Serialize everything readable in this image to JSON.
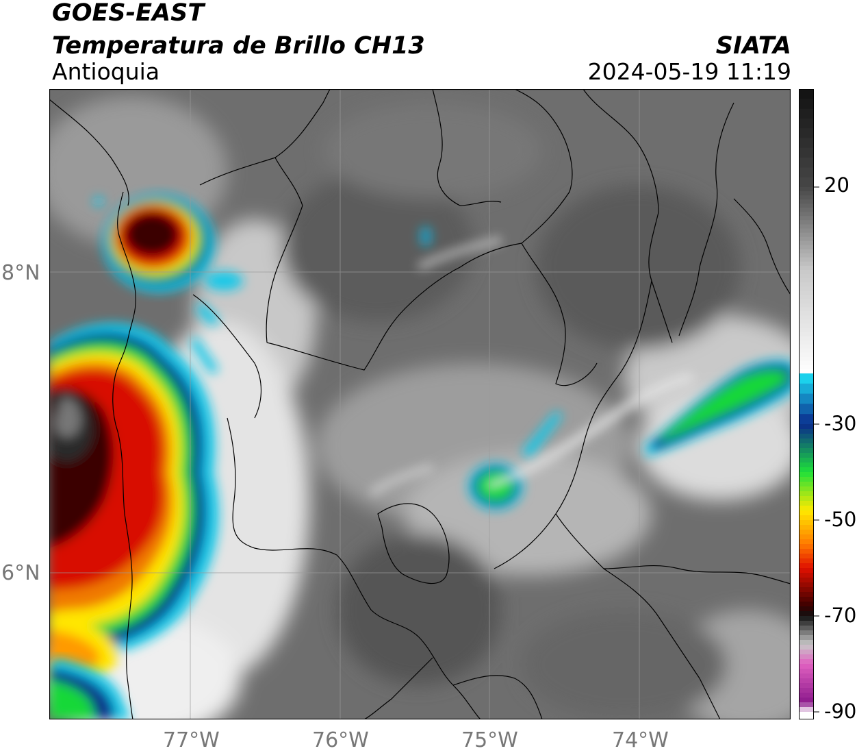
{
  "header": {
    "satellite": "GOES-EAST",
    "product": "Temperatura de Brillo CH13",
    "region": "Antioquia",
    "agency": "SIATA",
    "datetime": "2024-05-19 11:19"
  },
  "axes": {
    "lat_labels": [
      "8°N",
      "6°N"
    ],
    "lon_labels": [
      "77°W",
      "76°W",
      "75°W",
      "74°W"
    ]
  },
  "colorbar": {
    "labels": [
      "20",
      "-30",
      "-50",
      "-70",
      "-90"
    ],
    "stops": [
      {
        "value": 30,
        "color": "#111111"
      },
      {
        "value": 20,
        "color": "#474747"
      },
      {
        "value": 0,
        "color": "#c9c9c9"
      },
      {
        "value": -25,
        "color": "#ffffff"
      },
      {
        "value": -25.1,
        "color": "#1ee0f5"
      },
      {
        "value": -30,
        "color": "#0a2a8c"
      },
      {
        "value": -40,
        "color": "#1ee03a"
      },
      {
        "value": -48,
        "color": "#ffea00"
      },
      {
        "value": -55,
        "color": "#ff7a00"
      },
      {
        "value": -60,
        "color": "#e01000"
      },
      {
        "value": -68,
        "color": "#3a0000"
      },
      {
        "value": -70,
        "color": "#111111"
      },
      {
        "value": -76,
        "color": "#c8c8c8"
      },
      {
        "value": -80,
        "color": "#e060c0"
      },
      {
        "value": -88,
        "color": "#8c1a8c"
      },
      {
        "value": -90,
        "color": "#ffffff"
      }
    ]
  },
  "colors": {
    "cloud_gray": "#7a7a7a",
    "border": "#000000",
    "grid": "#9a9a9a"
  }
}
